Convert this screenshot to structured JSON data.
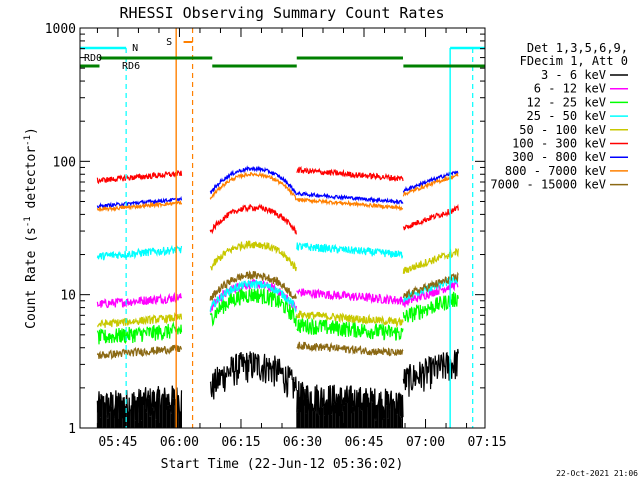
{
  "chart_data": {
    "type": "line",
    "title": "RHESSI Observing Summary Count Rates",
    "xlabel": "Start Time (22-Jun-12 05:36:02)",
    "ylabel": "Count Rate (s",
    "ylabel_sup": "-1",
    "ylabel_tail": " detector",
    "ylabel_end": ")",
    "yscale": "log",
    "ylim": [
      1,
      1000
    ],
    "xlim_minutes": [
      5.75,
      104.5
    ],
    "x_tick_labels": [
      "05:45",
      "06:00",
      "06:15",
      "06:30",
      "06:45",
      "07:00",
      "07:15"
    ],
    "x_tick_minutes": [
      15,
      30,
      45,
      60,
      75,
      90,
      105
    ],
    "y_tick_labels": [
      "1",
      "10",
      "100",
      "1000"
    ],
    "y_tick_values": [
      1,
      10,
      100,
      1000
    ],
    "legend_header": [
      "Det 1,3,5,6,9,",
      "FDecim 1, Att 0"
    ],
    "legend_placement": "right",
    "series": [
      {
        "name": "3 - 6 keV",
        "color": "#000000",
        "levels": [
          1.6,
          3.0,
          1.6,
          3.0
        ],
        "amp": 0.28,
        "fill_low": 1
      },
      {
        "name": "6 - 12 keV",
        "color": "#ff00ff",
        "levels": [
          9.2,
          12.0,
          9.5,
          11.5
        ],
        "amp": 0.08
      },
      {
        "name": "12 - 25 keV",
        "color": "#00ff00",
        "levels": [
          5.2,
          10.0,
          5.4,
          9.0
        ],
        "amp": 0.14
      },
      {
        "name": "25 - 50 keV",
        "color": "#00ffff",
        "levels": [
          21.0,
          12.0,
          21.0,
          12.5
        ],
        "amp": 0.07
      },
      {
        "name": "50 - 100 keV",
        "color": "#c8c800",
        "levels": [
          6.5,
          24.0,
          6.5,
          20.0
        ],
        "amp": 0.07
      },
      {
        "name": "100 - 300 keV",
        "color": "#ff0000",
        "levels": [
          78.0,
          45.0,
          78.0,
          42.0
        ],
        "amp": 0.05
      },
      {
        "name": "300 - 800 keV",
        "color": "#0000ff",
        "levels": [
          50.0,
          88.0,
          52.0,
          80.0
        ],
        "amp": 0.03
      },
      {
        "name": "800 - 7000 keV",
        "color": "#ff8000",
        "levels": [
          47.0,
          80.0,
          47.0,
          75.0
        ],
        "amp": 0.03
      },
      {
        "name": "7000 - 15000 keV",
        "color": "#8b6914",
        "levels": [
          3.8,
          14.0,
          3.8,
          13.0
        ],
        "amp": 0.07
      }
    ],
    "flag_labels": {
      "saa": "S",
      "night": "N",
      "rd0": "RD0",
      "rd6": "RD6"
    },
    "flag_colors": {
      "saa": "#ff8000",
      "night": "#00ffff",
      "decimation": "#008000"
    },
    "timestamp": "22-Oct-2021 21:06"
  }
}
